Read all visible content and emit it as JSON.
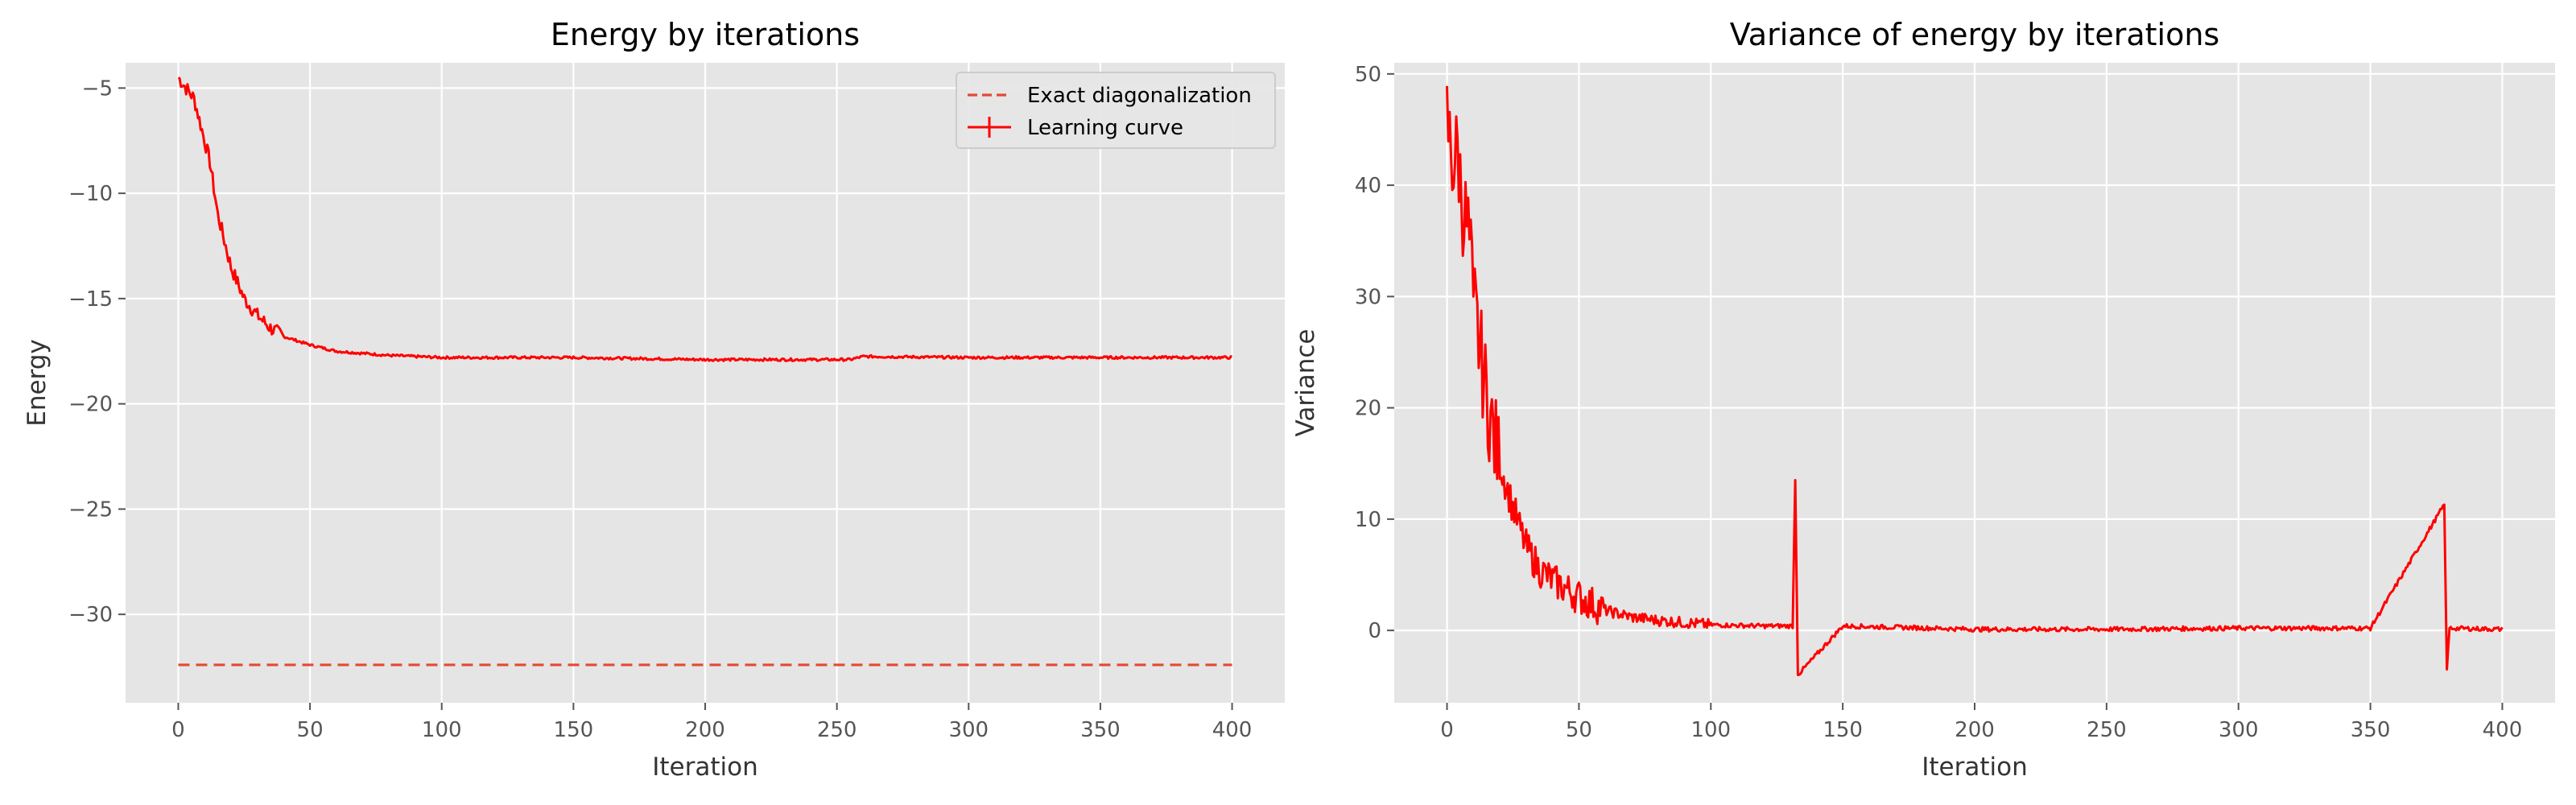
{
  "colors": {
    "axes_bg": "#e5e5e5",
    "grid": "#ffffff",
    "tick_text": "#555555",
    "label_text": "#333333",
    "curve": "#ff0000",
    "exact_line": "#e24a33"
  },
  "chart_data": [
    {
      "type": "line",
      "title": "Energy by iterations",
      "xlabel": "Iteration",
      "ylabel": "Energy",
      "xlim": [
        -20,
        420
      ],
      "ylim": [
        -34.2,
        -3.8
      ],
      "xticks": [
        0,
        50,
        100,
        150,
        200,
        250,
        300,
        350,
        400
      ],
      "yticks": [
        -30,
        -25,
        -20,
        -15,
        -10,
        -5
      ],
      "ytick_labels": [
        "−30",
        "−25",
        "−20",
        "−15",
        "−10",
        "−5"
      ],
      "grid": true,
      "legend": {
        "position": "top-right",
        "entries": [
          "Exact diagonalization",
          "Learning curve"
        ]
      },
      "series": [
        {
          "name": "Learning curve",
          "style": "solid",
          "x": [
            0,
            3,
            6,
            9,
            12,
            15,
            20,
            25,
            30,
            35,
            40,
            50,
            60,
            70,
            80,
            100,
            120,
            150,
            200,
            255,
            260,
            300,
            350,
            400
          ],
          "y": [
            -4.5,
            -5.0,
            -5.5,
            -7.0,
            -8.5,
            -11.0,
            -13.5,
            -15.0,
            -15.8,
            -16.4,
            -16.8,
            -17.2,
            -17.5,
            -17.6,
            -17.7,
            -17.8,
            -17.8,
            -17.8,
            -17.9,
            -17.9,
            -17.75,
            -17.8,
            -17.8,
            -17.8
          ]
        },
        {
          "name": "Exact diagonalization",
          "style": "dashed",
          "x": [
            0,
            400
          ],
          "y": [
            -32.4,
            -32.4
          ]
        }
      ]
    },
    {
      "type": "line",
      "title": "Variance of energy by iterations",
      "xlabel": "Iteration",
      "ylabel": "Variance",
      "xlim": [
        -20,
        420
      ],
      "ylim": [
        -6.5,
        51
      ],
      "xticks": [
        0,
        50,
        100,
        150,
        200,
        250,
        300,
        350,
        400
      ],
      "yticks": [
        0,
        10,
        20,
        30,
        40,
        50
      ],
      "ytick_labels": [
        "0",
        "10",
        "20",
        "30",
        "40",
        "50"
      ],
      "grid": true,
      "series": [
        {
          "style": "solid",
          "x": [
            0,
            2,
            4,
            6,
            8,
            10,
            12,
            15,
            18,
            20,
            25,
            30,
            35,
            40,
            50,
            60,
            70,
            80,
            100,
            120,
            131,
            132,
            133,
            150,
            200,
            250,
            300,
            350,
            378,
            379,
            380,
            400
          ],
          "y": [
            46,
            42,
            43,
            38,
            36,
            30,
            26,
            21,
            17,
            15,
            11,
            7.5,
            5.5,
            4.5,
            3.0,
            1.8,
            1.2,
            0.9,
            0.5,
            0.4,
            0.4,
            13.5,
            -4.0,
            0.4,
            0.1,
            0.1,
            0.2,
            0.2,
            11.3,
            -3.5,
            0.2,
            0.1
          ]
        }
      ]
    }
  ]
}
